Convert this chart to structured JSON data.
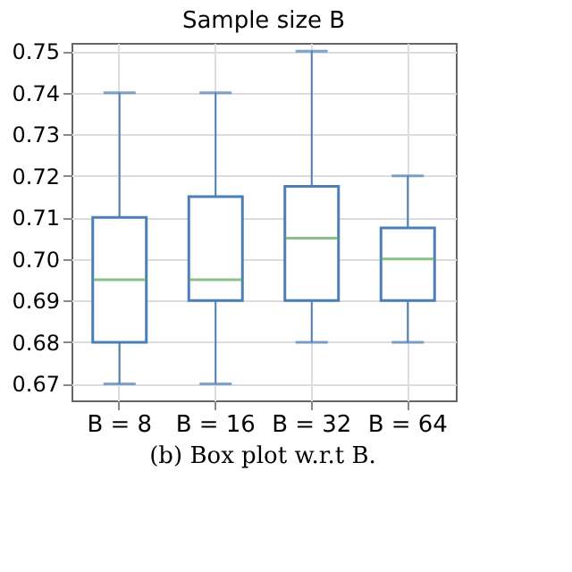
{
  "chart_data": {
    "type": "box",
    "title": "Sample size B",
    "categories": [
      "B = 8",
      "B = 16",
      "B = 32",
      "B = 64"
    ],
    "boxes": [
      {
        "low": 0.67,
        "q1": 0.68,
        "median": 0.695,
        "q3": 0.71,
        "high": 0.74
      },
      {
        "low": 0.67,
        "q1": 0.69,
        "median": 0.695,
        "q3": 0.715,
        "high": 0.74
      },
      {
        "low": 0.68,
        "q1": 0.69,
        "median": 0.705,
        "q3": 0.7175,
        "high": 0.75
      },
      {
        "low": 0.68,
        "q1": 0.69,
        "median": 0.7,
        "q3": 0.7075,
        "high": 0.72
      }
    ],
    "color": "#4c7fb5",
    "ylim": [
      0.666,
      0.752
    ],
    "yticks": [
      0.67,
      0.68,
      0.69,
      {
        "value": 0.7,
        "label": "0.70"
      },
      0.71,
      0.72,
      0.73,
      0.74,
      0.75
    ],
    "grid": true,
    "annotations": [
      "(b) Box plot w.r.t B."
    ]
  }
}
